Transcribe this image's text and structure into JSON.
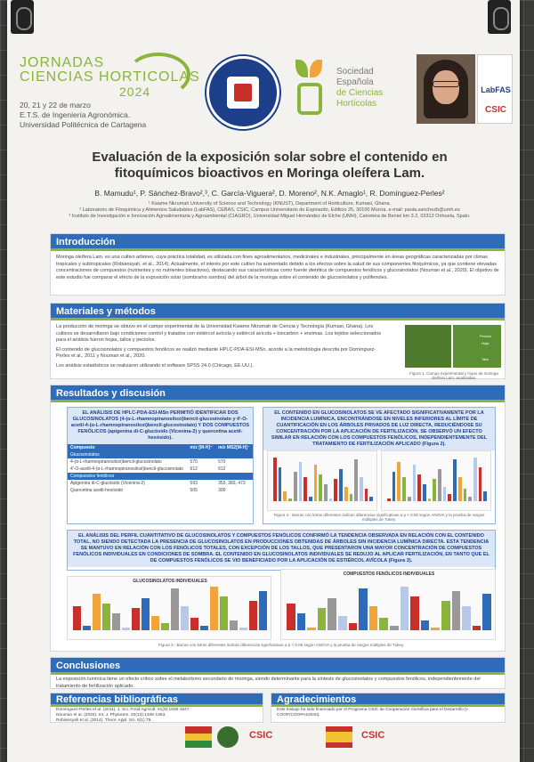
{
  "header": {
    "conf_line1": "JORNADAS",
    "conf_line2": "CIENCIAS HORTICOLAS",
    "conf_year": "2024",
    "dates": "20, 21 y 22 de marzo",
    "school": "E.T.S. de Ingeniería Agronómica.",
    "university": "Universidad Politécnica de Cartagena",
    "society": [
      "Sociedad",
      "Española",
      "de Ciencias",
      "Hortícolas"
    ],
    "labfas": "LabFAS",
    "csic": "CSIC"
  },
  "title": "Evaluación de la exposición solar sobre el contenido en fitoquímicos bioactivos en Moringa oleífera Lam.",
  "authors": "B. Mamudu¹, P. Sánchez-Bravo²,³, C. García-Viguera², D. Moreno², N.K. Amaglo¹, R. Domínguez-Perles²",
  "affiliations": [
    "¹ Kwame Nkrumah University of Science and Technology (KNUST), Department of Horticulture, Kumasi, Ghana.",
    "² Laboratorio de Fitoquímica y Alimentos Saludables (LabFAS), CEBAS, CSIC, Campus Universitario de Espinardo, Edificio 25, 30100 Murcia. e-mail: paola.sanchezb@umh.es",
    "³ Instituto de Investigación e Innovación Agroalimentaria y Agroambiental (CIAGRO), Universidad Miguel Hernández de Elche (UMH), Carretera de Beniel km 3.2, 03312 Orihuela, Spain."
  ],
  "intro": {
    "heading": "Introducción",
    "text": "Moringa oleífera Lam. es una cultivo arbóreo, cuya práctica totalidad, es utilizada con fines agroalimentarios, medicinales e industriales, principalmente en áreas geográficas caracterizadas por climas tropicales y subtropicales (Robiansyah, et al., 2014). Actualmente, el interés por este cultivo ha aumentado debido a los efectos sobre la salud de sus componentes fitoquímicos, ya que contiene elevadas concentraciones de compuestos (nutrientes y no nutrientes bioactivos), destacando sus características como fuente dietética de compuestos fenólicos y glucosinolatos (Nouman et al., 2020). El objetivo de este estudio fue comparar el efecto de la exposición solar (sombra/no sombra) del árbol de la moringa sobre el contenido de glucosinolatos y polifenoles."
  },
  "methods": {
    "heading": "Materiales y métodos",
    "items": [
      "La producción de moringa se obtuvo en el campo experimental de la Universidad Kwame Nkrumah de Ciencia y Tecnología (Kumasi, Ghana). Los cultivos se desarrollaron bajo condiciones control y tratados con estiércol avícola y estiércol avícola + biocarbón + enzimas. Los tejidos seleccionados para el análisis fueron hojas, tallos y peciolos.",
      "El contenido de glucosinolatos y compuestos fenólicos se realizó mediante HPLC-PDA-ESI-MSn, acorde a la metodología descrita por Domínguez-Perles et al., 2011 y Nouman et al., 2020.",
      "Los análisis estadísticos se realizaron utilizando el software SPSS 24.0 (Chicago, EE.UU.)."
    ],
    "figure_caption": "Figura 1. Campo experimental y hojas de moringa oleífera Lam. analizadas.",
    "photo_labels": [
      "Peciolo",
      "Hoja",
      "Tallo"
    ]
  },
  "results": {
    "heading": "Resultados y discusión",
    "box1": "EL ANÁLISIS DE HPLC-PDA-ESI-MSn PERMITIÓ IDENTIFICAR DOS GLUCOSINOLATOS (4-(α-L-rhamnopiranosiloxi)bencil-glucosinolato y 4'-O-acetil-4-(α-L-rhamnopiranosiloxi)bencil-glucosinolato) Y DOS COMPUESTOS FENÓLICOS (apigenina di-C-glucósido (Vicenina-2) y quercetina acetil-hexósido).",
    "table_headers": [
      "Compuesto",
      "m/z [M-H]⁻",
      "m/z MS2[M-H]⁻"
    ],
    "table_groups": [
      {
        "label": "Glucosinolatos",
        "rows": [
          [
            "4-(α-L-rhamnopiranosiloxi)bencil-glucosinolato",
            "570",
            "570"
          ],
          [
            "4'-O-acetil-4-(α-L-rhamnopiranosiloxi)bencil-glucosinolato",
            "612",
            "612"
          ]
        ]
      },
      {
        "label": "Compuestos fenólicos",
        "rows": [
          [
            "Apigenina di-C-glucósido (Vicenina-2)",
            "593",
            "353, 383, 473"
          ],
          [
            "Quercetina acetil-hexósido",
            "505",
            "300"
          ]
        ]
      }
    ],
    "box2": "EL CONTENIDO EN GLUCOSINOLATOS SE VE AFECTADO SIGNIFICATIVAMENTE POR LA INCIDENCIA LUMÍNICA, ENCONTRÁNDOSE EN NIVELES INFERIORES AL LÍMITE DE CUANTIFICACIÓN EN LOS ÁRBOLES PRIVADOS DE LUZ DIRECTA, REDUCIÉNDOSE SU CONCENTRACIÓN POR LA APLICACIÓN DE FERTILIZACIÓN. SE OBSERVÓ UN EFECTO SIMILAR EN RELACIÓN CON LOS COMPUESTOS FENÓLICOS, INDEPENDIENTEMENTE DEL TRATAMIENTO DE FERTILIZACIÓN APLICADO (Figura 2).",
    "fig2_caption": "Figura 2.- Barras con letras diferentes indican diferencias significativas a p < 0.05 según ANOVA y la prueba de rangos múltiples de Tukey.",
    "box3": "EL ANÁLISIS DEL PERFIL CUANTITATIVO DE GLUCOSINOLATOS Y COMPUESTOS FENÓLICOS CONFIRMÓ LA TENDENCIA OBSERVADA EN RELACIÓN CON EL CONTENIDO TOTAL, NO SIENDO DETECTADA LA PRESENCIA DE GLUCOSINOLATOS EN PRODUCCIONES OBTENIDAS DE ÁRBOLES SIN INCIDENCIA LUMÍNICA DIRECTA. ESTA TENDENCIA SE MANTUVO EN RELACIÓN CON LOS FENÓLICOS TOTALES, CON EXCEPCIÓN DE LOS TALLOS, QUE PRESENTARON UNA MAYOR CONCENTRACIÓN DE COMPUESTOS FENÓLICOS INDIVIDUALES EN CONDICIONES DE SOMBRA. EL CONTENIDO EN GLUCOSINOLATOS INDIVIDUALES SE REDUJO AL APLICAR FERTILIZACIÓN, EN TANTO QUE EL DE COMPUESTOS FENÓLICOS SE VIO BENEFICIADO POR LA APLICACIÓN DE ESTIÉRCOL AVÍCOLA (Figura 3).",
    "chart_title_a": "GLUCOSINOLATOS INDIVIDUALES",
    "chart_title_b": "COMPUESTOS FENÓLICOS INDIVIDUALES",
    "fig3_caption": "Figura 3.- Barras con letras diferentes indican diferencias significativas a p < 0.05 según ANOVA y la prueba de rangos múltiples de Tukey."
  },
  "conclusions": {
    "heading": "Conclusiones",
    "text": "La exposición lumínica tiene un efecto crítico sobre el metabolismo secundario de moringa, siendo determinante para la síntesis de glucosinolatos y compuestos fenólicos, independientemente del tratamiento de fertilización aplicado."
  },
  "references": {
    "heading": "Referencias bibliográficas",
    "items": [
      "Domínguez-Perles et al. (2011). J. Sci. Food Agricult. 91(9):1638-1647.",
      "Nouman et al. (2020). Int. J. Phytorem. 22(13):1348-1363.",
      "Robiansyah et al. (2014). Theor. Appl. Sci. 6(1):79."
    ]
  },
  "acknowledgements": {
    "heading": "Agradecimientos",
    "text": "Este trabajo ha sido financiado por el Programa CSIC de Cooperación Científica para el Desarrollo (i-COOP/COOPA22040)."
  },
  "footer": {
    "csic": "CSIC"
  },
  "colors": {
    "primary": "#2e6bb8",
    "accent": "#8bb43a",
    "bar_series": [
      "#c9302c",
      "#2e6bb8",
      "#f2a33a",
      "#8bb43a",
      "#999999",
      "#b7c9e6"
    ]
  }
}
